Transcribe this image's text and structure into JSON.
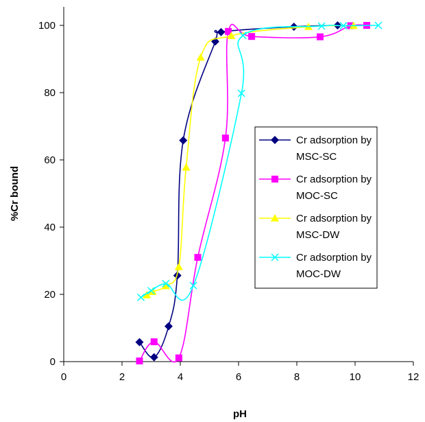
{
  "chart_data": {
    "type": "line",
    "title": "",
    "xlabel": "pH",
    "ylabel": "%Cr bound",
    "xlim": [
      0,
      12
    ],
    "ylim": [
      0,
      100
    ],
    "x_ticks": [
      0,
      2,
      4,
      6,
      8,
      10,
      12
    ],
    "y_ticks": [
      0,
      20,
      40,
      60,
      80,
      100
    ],
    "grid": false,
    "legend_position": "right",
    "smooth": true,
    "series": [
      {
        "name": "Cr adsorption by MSC-SC",
        "color": "#000080",
        "marker": "diamond",
        "x": [
          2.6,
          3.1,
          3.6,
          3.9,
          4.1,
          5.2,
          5.4,
          7.9,
          9.4
        ],
        "y": [
          5.8,
          1.3,
          10.5,
          25.6,
          65.8,
          95.2,
          98.0,
          99.6,
          100.0
        ]
      },
      {
        "name": "Cr adsorption by MOC-SC",
        "color": "#FF00FF",
        "marker": "square",
        "x": [
          2.6,
          3.1,
          3.95,
          4.6,
          5.55,
          5.65,
          6.45,
          8.8,
          9.85,
          10.4
        ],
        "y": [
          0.2,
          5.9,
          1.1,
          31.0,
          66.5,
          98.2,
          96.7,
          96.6,
          99.9,
          100.0
        ]
      },
      {
        "name": "Cr adsorption by MSC-DW",
        "color": "#FFFF00",
        "marker": "triangle",
        "x": [
          2.85,
          3.05,
          3.5,
          3.95,
          4.2,
          4.7,
          5.75,
          8.4,
          9.95
        ],
        "y": [
          19.8,
          20.8,
          22.5,
          28.2,
          57.8,
          90.5,
          96.9,
          99.6,
          99.9
        ]
      },
      {
        "name": "Cr adsorption by MOC-DW",
        "color": "#00FFFF",
        "marker": "x",
        "x": [
          2.65,
          3.0,
          3.5,
          4.45,
          6.1,
          6.15,
          8.85,
          9.6,
          10.8
        ],
        "y": [
          19.1,
          21.1,
          23.2,
          22.6,
          79.8,
          97.0,
          99.8,
          99.9,
          100.0
        ]
      }
    ]
  }
}
